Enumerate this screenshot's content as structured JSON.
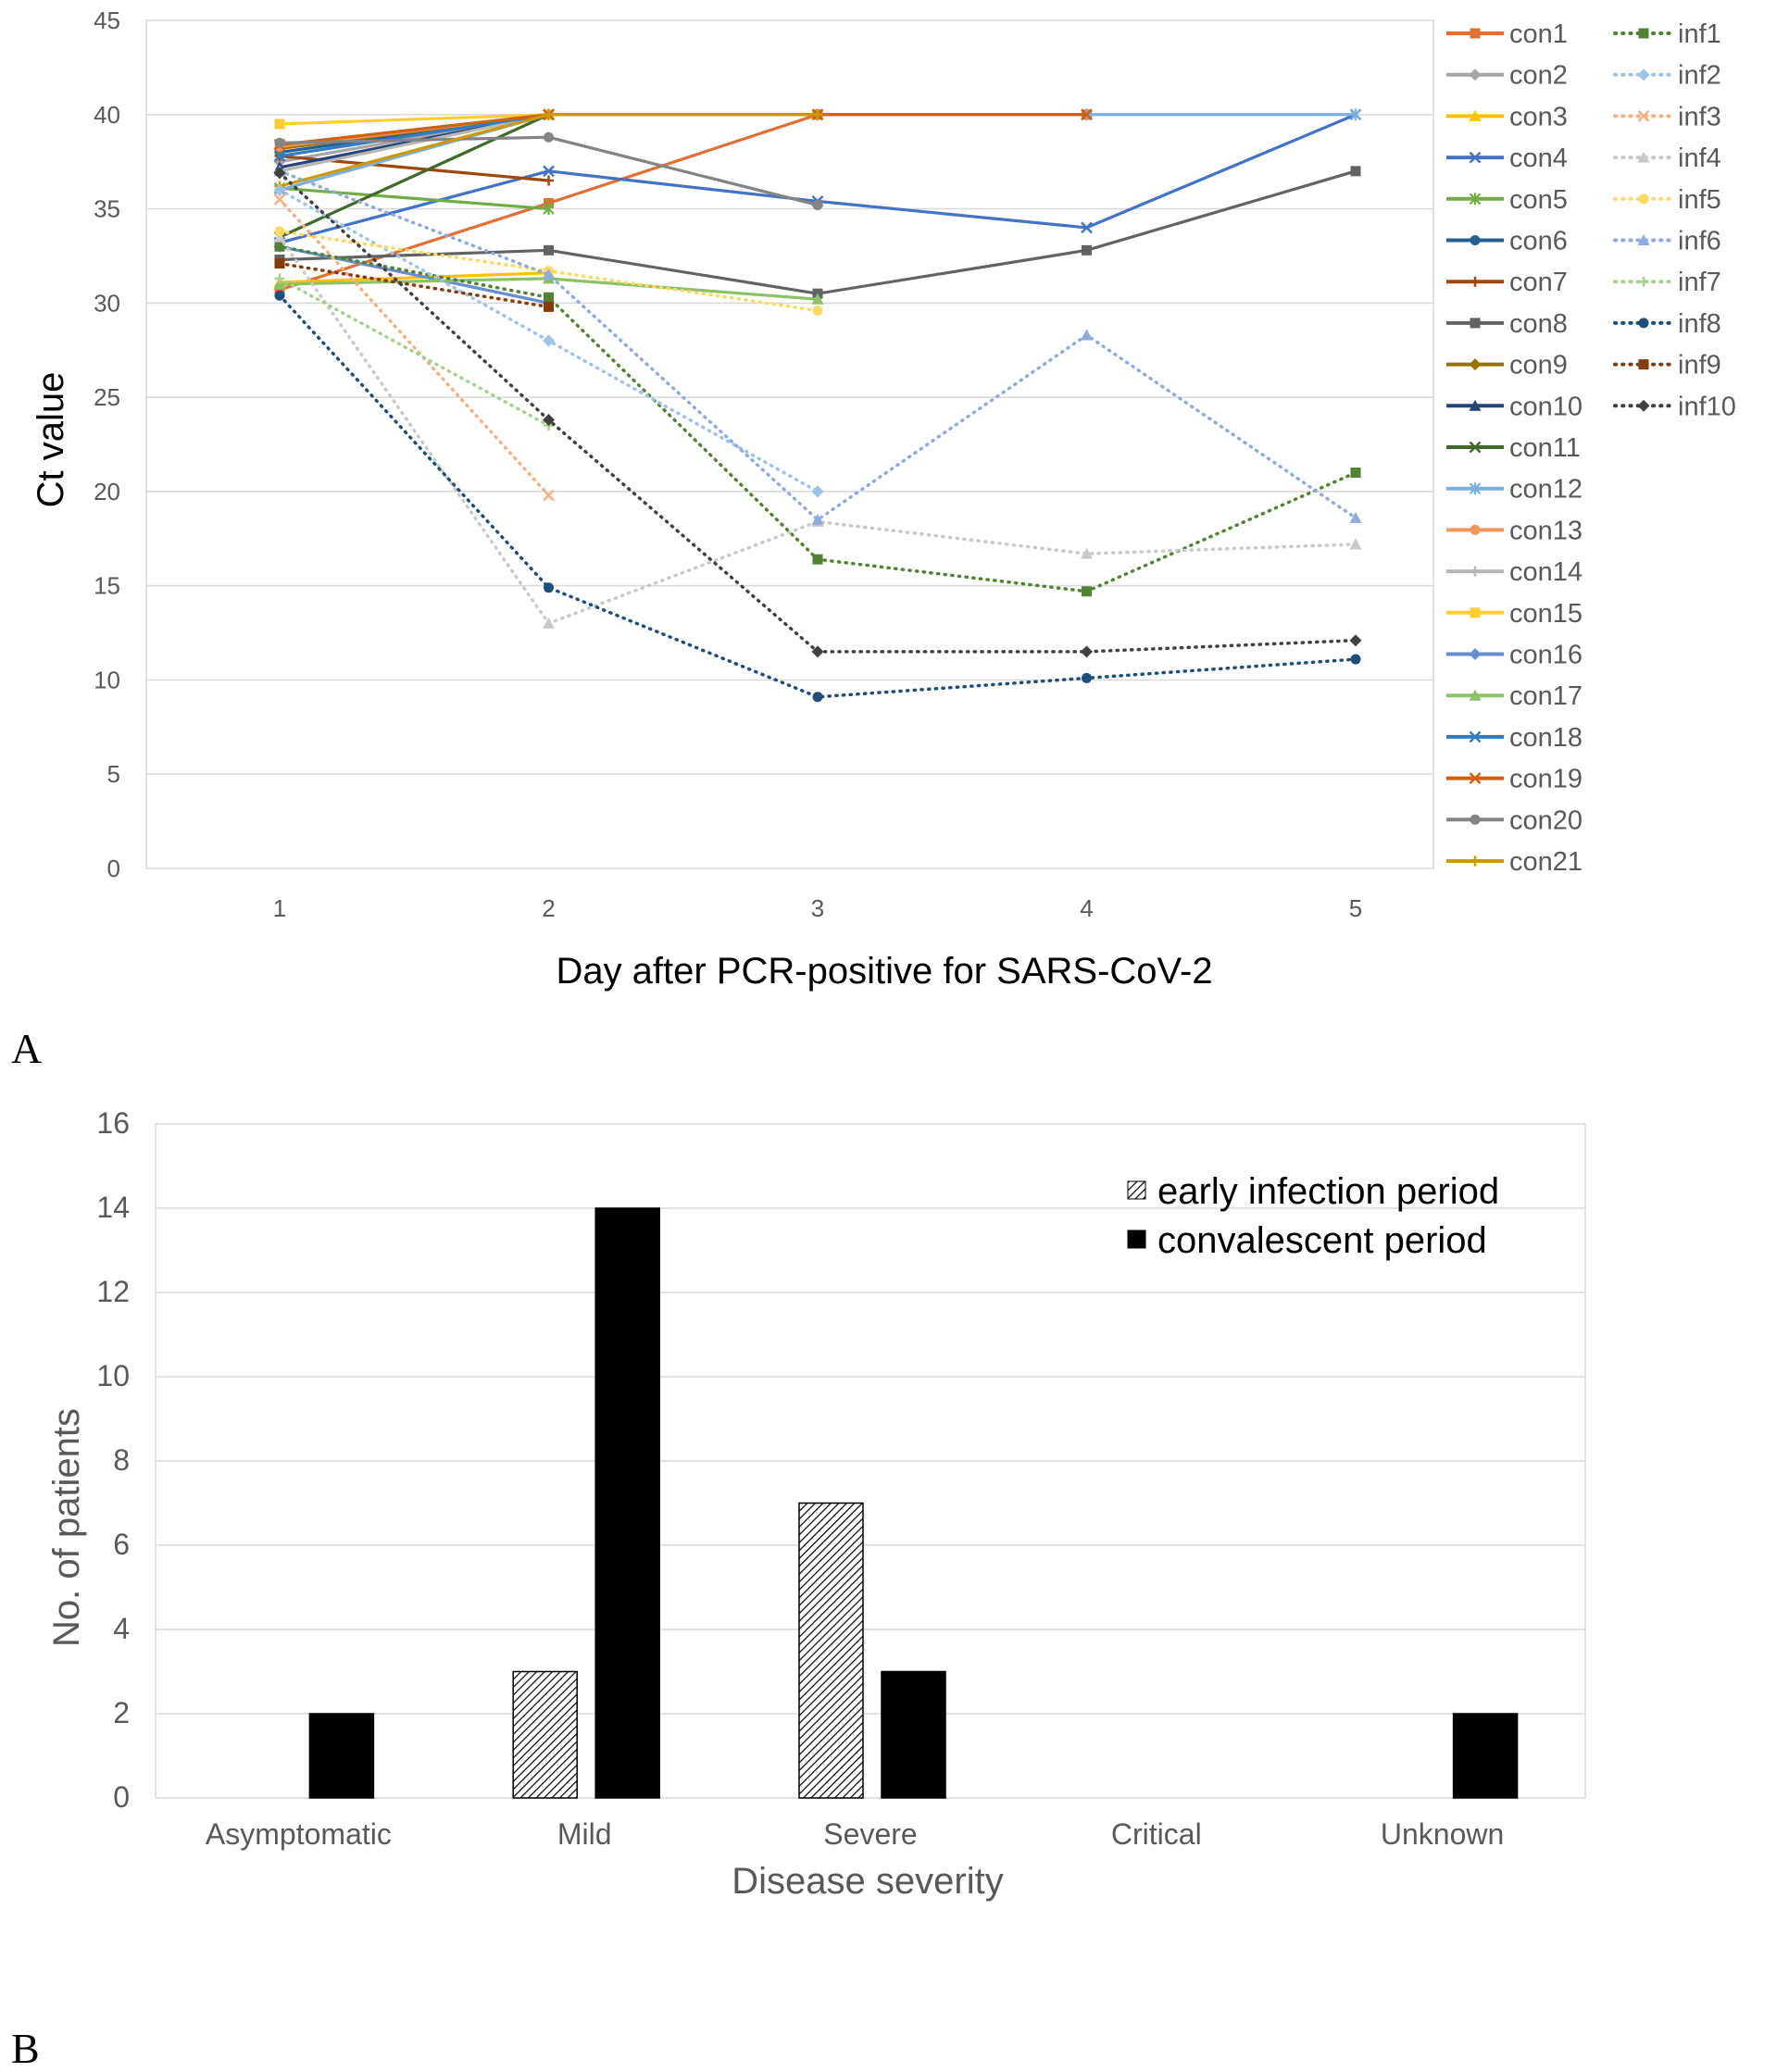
{
  "panels": {
    "a_label": "A",
    "b_label": "B"
  },
  "chart_data": [
    {
      "type": "line",
      "panel": "A",
      "xlabel": "Day after PCR-positive for SARS-CoV-2",
      "ylabel": "Ct  value",
      "x": [
        1,
        2,
        3,
        4,
        5
      ],
      "xlim": [
        1,
        5
      ],
      "ylim": [
        0,
        45
      ],
      "yticks": [
        0,
        5,
        10,
        15,
        20,
        25,
        30,
        35,
        40,
        45
      ],
      "grid": true,
      "legend_position": "right",
      "series": [
        {
          "name": "con1",
          "color": "#E07033",
          "style": "solid",
          "marker": "square",
          "values": [
            30.7,
            35.3,
            40,
            40,
            null
          ]
        },
        {
          "name": "con2",
          "color": "#A5A5A5",
          "style": "solid",
          "marker": "diamond",
          "values": [
            37.5,
            40,
            null,
            null,
            null
          ]
        },
        {
          "name": "con3",
          "color": "#FFC000",
          "style": "solid",
          "marker": "triangle",
          "values": [
            31.1,
            31.6,
            null,
            null,
            null
          ]
        },
        {
          "name": "con4",
          "color": "#4472C4",
          "style": "solid",
          "marker": "x",
          "values": [
            33.2,
            37.0,
            35.4,
            34.0,
            40
          ]
        },
        {
          "name": "con5",
          "color": "#70AD47",
          "style": "solid",
          "marker": "star",
          "values": [
            36.1,
            35.0,
            null,
            null,
            null
          ]
        },
        {
          "name": "con6",
          "color": "#255E91",
          "style": "solid",
          "marker": "circle",
          "values": [
            38.0,
            40,
            null,
            null,
            null
          ]
        },
        {
          "name": "con7",
          "color": "#9E480E",
          "style": "solid",
          "marker": "plus",
          "values": [
            37.8,
            36.5,
            null,
            null,
            null
          ]
        },
        {
          "name": "con8",
          "color": "#636363",
          "style": "solid",
          "marker": "square",
          "values": [
            32.3,
            32.8,
            30.5,
            32.8,
            37.0
          ]
        },
        {
          "name": "con9",
          "color": "#997300",
          "style": "solid",
          "marker": "diamond",
          "values": [
            38.2,
            40,
            null,
            null,
            null
          ]
        },
        {
          "name": "con10",
          "color": "#264478",
          "style": "solid",
          "marker": "triangle",
          "values": [
            37.2,
            40,
            null,
            null,
            null
          ]
        },
        {
          "name": "con11",
          "color": "#43682B",
          "style": "solid",
          "marker": "x",
          "values": [
            33.5,
            40,
            null,
            null,
            null
          ]
        },
        {
          "name": "con12",
          "color": "#7CAFDD",
          "style": "solid",
          "marker": "star",
          "values": [
            36.0,
            40,
            40,
            40,
            40
          ]
        },
        {
          "name": "con13",
          "color": "#F1975A",
          "style": "solid",
          "marker": "circle",
          "values": [
            38.3,
            40,
            null,
            null,
            null
          ]
        },
        {
          "name": "con14",
          "color": "#B7B7B7",
          "style": "solid",
          "marker": "plus",
          "values": [
            37.0,
            40,
            null,
            null,
            null
          ]
        },
        {
          "name": "con15",
          "color": "#FFCD33",
          "style": "solid",
          "marker": "square",
          "values": [
            39.5,
            40,
            null,
            null,
            null
          ]
        },
        {
          "name": "con16",
          "color": "#698ED0",
          "style": "solid",
          "marker": "diamond",
          "values": [
            33.0,
            30.0,
            null,
            null,
            null
          ]
        },
        {
          "name": "con17",
          "color": "#8CC168",
          "style": "solid",
          "marker": "triangle",
          "values": [
            31.0,
            31.3,
            30.2,
            null,
            null
          ]
        },
        {
          "name": "con18",
          "color": "#327DC2",
          "style": "solid",
          "marker": "x",
          "values": [
            37.8,
            40,
            null,
            null,
            null
          ]
        },
        {
          "name": "con19",
          "color": "#D26012",
          "style": "solid",
          "marker": "x",
          "values": [
            38.4,
            40,
            40,
            40,
            null
          ]
        },
        {
          "name": "con20",
          "color": "#848484",
          "style": "solid",
          "marker": "circle",
          "values": [
            38.5,
            38.8,
            35.2,
            null,
            null
          ]
        },
        {
          "name": "con21",
          "color": "#CC9A00",
          "style": "solid",
          "marker": "plus",
          "values": [
            36.2,
            40,
            40,
            null,
            null
          ]
        },
        {
          "name": "inf1",
          "color": "#548235",
          "style": "dotted",
          "marker": "square",
          "values": [
            33.0,
            30.3,
            16.4,
            14.7,
            21.0
          ]
        },
        {
          "name": "inf2",
          "color": "#9DC3E6",
          "style": "dotted",
          "marker": "diamond",
          "values": [
            36.0,
            28.0,
            20.0,
            null,
            null
          ]
        },
        {
          "name": "inf3",
          "color": "#F4B183",
          "style": "dotted",
          "marker": "x",
          "values": [
            35.5,
            19.8,
            null,
            null,
            null
          ]
        },
        {
          "name": "inf4",
          "color": "#C9C9C9",
          "style": "dotted",
          "marker": "triangle",
          "values": [
            33.5,
            13.0,
            18.4,
            16.7,
            17.2
          ]
        },
        {
          "name": "inf5",
          "color": "#FFD966",
          "style": "dotted",
          "marker": "circle",
          "values": [
            33.8,
            31.7,
            29.6,
            null,
            null
          ]
        },
        {
          "name": "inf6",
          "color": "#8FAADC",
          "style": "dotted",
          "marker": "triangle",
          "values": [
            37.0,
            31.5,
            18.5,
            28.3,
            18.6
          ]
        },
        {
          "name": "inf7",
          "color": "#A9D18E",
          "style": "dotted",
          "marker": "plus",
          "values": [
            31.3,
            23.5,
            null,
            null,
            null
          ]
        },
        {
          "name": "inf8",
          "color": "#1F4E79",
          "style": "dotted",
          "marker": "circle",
          "values": [
            30.4,
            14.9,
            9.1,
            10.1,
            11.1
          ]
        },
        {
          "name": "inf9",
          "color": "#843C0C",
          "style": "dotted",
          "marker": "square",
          "values": [
            32.1,
            29.8,
            null,
            null,
            null
          ]
        },
        {
          "name": "inf10",
          "color": "#404040",
          "style": "dotted",
          "marker": "diamond",
          "values": [
            36.9,
            23.8,
            11.5,
            11.5,
            12.1
          ]
        }
      ]
    },
    {
      "type": "bar",
      "panel": "B",
      "xlabel": "Disease severity",
      "ylabel": "No. of patients",
      "categories": [
        "Asymptomatic",
        "Mild",
        "Severe",
        "Critical",
        "Unknown"
      ],
      "ylim": [
        0,
        16
      ],
      "yticks": [
        0,
        2,
        4,
        6,
        8,
        10,
        12,
        14,
        16
      ],
      "grid": true,
      "legend_position": "top-right",
      "series": [
        {
          "name": "early infection period",
          "fill": "hatched",
          "color": "#000000",
          "values": [
            0,
            3,
            7,
            0,
            0
          ]
        },
        {
          "name": "convalescent period",
          "fill": "solid",
          "color": "#000000",
          "values": [
            2,
            14,
            3,
            0,
            2
          ]
        }
      ]
    }
  ]
}
